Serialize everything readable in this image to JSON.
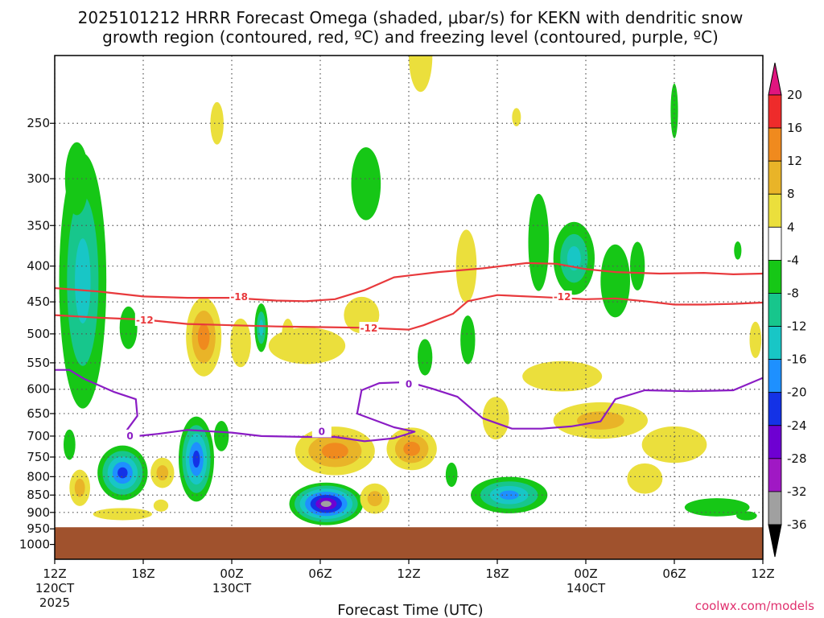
{
  "title": {
    "line1": "2025101212 HRRR Forecast Omega (shaded, μbar/s) for KEKN with dendritic snow",
    "line2": "growth region (contoured, red, ºC) and freezing level (contoured, purple, ºC)"
  },
  "credit": "coolwx.com/models",
  "chart_data": {
    "type": "heatmap",
    "xlabel": "Forecast Time (UTC)",
    "xlim": [
      0,
      48
    ],
    "ylim": [
      1050,
      200
    ],
    "y_scale": "log",
    "grid": true,
    "x_ticks": [
      {
        "hour": 0,
        "label": "12Z",
        "sub1": "120CT",
        "sub2": "2025"
      },
      {
        "hour": 6,
        "label": "18Z",
        "sub1": "",
        "sub2": ""
      },
      {
        "hour": 12,
        "label": "00Z",
        "sub1": "130CT",
        "sub2": ""
      },
      {
        "hour": 18,
        "label": "06Z",
        "sub1": "",
        "sub2": ""
      },
      {
        "hour": 24,
        "label": "12Z",
        "sub1": "",
        "sub2": ""
      },
      {
        "hour": 30,
        "label": "18Z",
        "sub1": "",
        "sub2": ""
      },
      {
        "hour": 36,
        "label": "00Z",
        "sub1": "140CT",
        "sub2": ""
      },
      {
        "hour": 42,
        "label": "06Z",
        "sub1": "",
        "sub2": ""
      },
      {
        "hour": 48,
        "label": "12Z",
        "sub1": "",
        "sub2": ""
      }
    ],
    "y_ticks": [
      250,
      300,
      350,
      400,
      450,
      500,
      550,
      600,
      650,
      700,
      750,
      800,
      850,
      900,
      950,
      1000
    ],
    "y_tick_labels": [
      "250",
      "300",
      "350",
      "400",
      "450",
      "500",
      "550",
      "600",
      "650",
      "700",
      "750",
      "800",
      "850",
      "900",
      "950",
      "1000"
    ],
    "ground_pressure": 945,
    "ground_color": "#a0522d",
    "colorbar": {
      "labels": [
        "20",
        "16",
        "12",
        "8",
        "4",
        "-4",
        "-8",
        "-12",
        "-16",
        "-20",
        "-24",
        "-28",
        "-32",
        "-36"
      ],
      "bands": [
        "#ee2b2b",
        "#f08a1e",
        "#e9b428",
        "#ebdf3c",
        "#ffffff",
        "#16c716",
        "#17c68c",
        "#18c6c6",
        "#1e90ff",
        "#1432e6",
        "#6e00d2",
        "#a018c4",
        "#a0a0a0"
      ],
      "top_arrow": "#e0157f",
      "bottom_arrow": "#000000"
    },
    "omega_bands": {
      "8": "#e9b428",
      "12": "#f08a1e",
      "4": "#ebdf3c",
      "-4": "#16c716",
      "-8": "#17c68c",
      "-12": "#18c6c6",
      "-16": "#1e90ff",
      "-20": "#1432e6",
      "-24": "#6e00d2",
      "-32": "#a0a0a0"
    },
    "omega_cells": [
      {
        "t": 1.9,
        "p": 420,
        "hw": 1.6,
        "hd": 0.42,
        "v": -12
      },
      {
        "t": 1.5,
        "p": 300,
        "hw": 0.8,
        "hd": 0.12,
        "v": -4
      },
      {
        "t": 5.0,
        "p": 490,
        "hw": 0.6,
        "hd": 0.07,
        "v": -4
      },
      {
        "t": 1.0,
        "p": 720,
        "hw": 0.4,
        "hd": 0.05,
        "v": -4
      },
      {
        "t": 1.7,
        "p": 830,
        "hw": 0.7,
        "hd": 0.06,
        "v": 8
      },
      {
        "t": 4.6,
        "p": 790,
        "hw": 1.7,
        "hd": 0.09,
        "v": -20
      },
      {
        "t": 7.3,
        "p": 790,
        "hw": 0.8,
        "hd": 0.05,
        "v": 8
      },
      {
        "t": 9.6,
        "p": 755,
        "hw": 1.2,
        "hd": 0.14,
        "v": -20
      },
      {
        "t": 11.3,
        "p": 700,
        "hw": 0.5,
        "hd": 0.05,
        "v": -4
      },
      {
        "t": 10.1,
        "p": 505,
        "hw": 1.2,
        "hd": 0.13,
        "v": 12
      },
      {
        "t": 11.0,
        "p": 250,
        "hw": 0.45,
        "hd": 0.07,
        "v": 4
      },
      {
        "t": 14.0,
        "p": 490,
        "hw": 0.45,
        "hd": 0.08,
        "v": -12
      },
      {
        "t": 12.6,
        "p": 515,
        "hw": 0.7,
        "hd": 0.08,
        "v": 4
      },
      {
        "t": 15.8,
        "p": 500,
        "hw": 0.4,
        "hd": 0.05,
        "v": 4
      },
      {
        "t": 17.1,
        "p": 520,
        "hw": 2.6,
        "hd": 0.06,
        "v": 4
      },
      {
        "t": 19.0,
        "p": 735,
        "hw": 2.7,
        "hd": 0.08,
        "v": 12
      },
      {
        "t": 18.4,
        "p": 875,
        "hw": 2.5,
        "hd": 0.07,
        "v": -32
      },
      {
        "t": 20.8,
        "p": 470,
        "hw": 1.2,
        "hd": 0.06,
        "v": 4
      },
      {
        "t": 21.1,
        "p": 305,
        "hw": 1.0,
        "hd": 0.12,
        "v": -4
      },
      {
        "t": 21.7,
        "p": 860,
        "hw": 1.0,
        "hd": 0.05,
        "v": 8
      },
      {
        "t": 24.2,
        "p": 730,
        "hw": 1.7,
        "hd": 0.07,
        "v": 12
      },
      {
        "t": 24.8,
        "p": 200,
        "hw": 0.8,
        "hd": 0.12,
        "v": 4
      },
      {
        "t": 25.1,
        "p": 540,
        "hw": 0.5,
        "hd": 0.06,
        "v": -4
      },
      {
        "t": 26.9,
        "p": 795,
        "hw": 0.4,
        "hd": 0.04,
        "v": -4
      },
      {
        "t": 27.9,
        "p": 400,
        "hw": 0.7,
        "hd": 0.12,
        "v": 4
      },
      {
        "t": 28.0,
        "p": 510,
        "hw": 0.5,
        "hd": 0.08,
        "v": -4
      },
      {
        "t": 30.8,
        "p": 850,
        "hw": 2.6,
        "hd": 0.06,
        "v": -16
      },
      {
        "t": 29.9,
        "p": 660,
        "hw": 0.9,
        "hd": 0.07,
        "v": 4
      },
      {
        "t": 31.3,
        "p": 245,
        "hw": 0.3,
        "hd": 0.03,
        "v": 4
      },
      {
        "t": 32.8,
        "p": 370,
        "hw": 0.7,
        "hd": 0.16,
        "v": -4
      },
      {
        "t": 35.2,
        "p": 390,
        "hw": 1.4,
        "hd": 0.12,
        "v": -12
      },
      {
        "t": 34.4,
        "p": 575,
        "hw": 2.7,
        "hd": 0.05,
        "v": 4
      },
      {
        "t": 37.0,
        "p": 665,
        "hw": 3.2,
        "hd": 0.06,
        "v": 8
      },
      {
        "t": 38.0,
        "p": 420,
        "hw": 1.0,
        "hd": 0.12,
        "v": -4
      },
      {
        "t": 39.5,
        "p": 400,
        "hw": 0.5,
        "hd": 0.08,
        "v": -4
      },
      {
        "t": 42.0,
        "p": 720,
        "hw": 2.2,
        "hd": 0.06,
        "v": 4
      },
      {
        "t": 40.0,
        "p": 805,
        "hw": 1.2,
        "hd": 0.05,
        "v": 4
      },
      {
        "t": 42.0,
        "p": 240,
        "hw": 0.25,
        "hd": 0.09,
        "v": -4
      },
      {
        "t": 44.9,
        "p": 885,
        "hw": 2.2,
        "hd": 0.03,
        "v": -4
      },
      {
        "t": 46.9,
        "p": 910,
        "hw": 0.7,
        "hd": 0.015,
        "v": -4
      },
      {
        "t": 46.3,
        "p": 380,
        "hw": 0.25,
        "hd": 0.03,
        "v": -4
      },
      {
        "t": 47.5,
        "p": 510,
        "hw": 0.4,
        "hd": 0.06,
        "v": 4
      },
      {
        "t": 7.2,
        "p": 880,
        "hw": 0.5,
        "hd": 0.02,
        "v": 4
      },
      {
        "t": 4.6,
        "p": 905,
        "hw": 2.0,
        "hd": 0.02,
        "v": 4
      }
    ],
    "dgz_upper_isotherm": {
      "label": "-18",
      "label_at": [
        12.5,
        443
      ],
      "points": [
        [
          0,
          430
        ],
        [
          3,
          435
        ],
        [
          6,
          442
        ],
        [
          9,
          444
        ],
        [
          12,
          444
        ],
        [
          15,
          448
        ],
        [
          17,
          449
        ],
        [
          19,
          446
        ],
        [
          21,
          433
        ],
        [
          23,
          415
        ],
        [
          26,
          408
        ],
        [
          29,
          403
        ],
        [
          32,
          396
        ],
        [
          34,
          397
        ],
        [
          36,
          404
        ],
        [
          38,
          408
        ],
        [
          41,
          410
        ],
        [
          44,
          409
        ],
        [
          46,
          411
        ],
        [
          48,
          410
        ]
      ]
    },
    "dgz_lower_isotherm": {
      "label": "-12",
      "label_at": [
        6.1,
        478
      ],
      "label2": "-12",
      "label2_at": [
        21.3,
        491
      ],
      "label3": "-12",
      "label3_at": [
        34.4,
        443
      ],
      "points": [
        [
          0,
          470
        ],
        [
          3,
          474
        ],
        [
          6,
          477
        ],
        [
          9,
          484
        ],
        [
          12,
          486
        ],
        [
          15,
          488
        ],
        [
          18,
          489
        ],
        [
          21,
          490
        ],
        [
          24,
          493
        ],
        [
          25,
          486
        ],
        [
          27,
          468
        ],
        [
          28,
          449
        ],
        [
          30,
          440
        ],
        [
          33,
          443
        ],
        [
          36,
          446
        ],
        [
          38,
          445
        ],
        [
          40,
          449
        ],
        [
          42,
          454
        ],
        [
          44,
          454
        ],
        [
          46,
          453
        ],
        [
          48,
          451
        ]
      ]
    },
    "freezing_level": {
      "label": "0",
      "label_at": [
        5.1,
        700
      ],
      "label2": "0",
      "label2_at": [
        18.1,
        690
      ],
      "label3": "0",
      "label3_at": [
        24.0,
        590
      ],
      "points": [
        [
          0,
          563
        ],
        [
          1,
          563
        ],
        [
          2,
          580
        ],
        [
          4,
          605
        ],
        [
          5.5,
          620
        ],
        [
          5.6,
          655
        ],
        [
          4.7,
          695
        ],
        [
          5.6,
          700
        ],
        [
          7,
          695
        ],
        [
          9,
          686
        ],
        [
          12,
          692
        ],
        [
          14,
          700
        ],
        [
          17,
          702
        ],
        [
          19,
          702
        ],
        [
          21,
          712
        ],
        [
          23,
          705
        ],
        [
          24.4,
          690
        ],
        [
          23,
          680
        ],
        [
          20.5,
          650
        ],
        [
          20.8,
          602
        ],
        [
          22,
          588
        ],
        [
          24,
          586
        ],
        [
          25.6,
          599
        ],
        [
          27.3,
          615
        ],
        [
          29,
          660
        ],
        [
          31,
          683
        ],
        [
          33,
          683
        ],
        [
          35,
          678
        ],
        [
          37,
          667
        ],
        [
          38,
          620
        ],
        [
          40,
          602
        ],
        [
          43,
          604
        ],
        [
          46,
          602
        ],
        [
          48,
          578
        ]
      ]
    }
  }
}
